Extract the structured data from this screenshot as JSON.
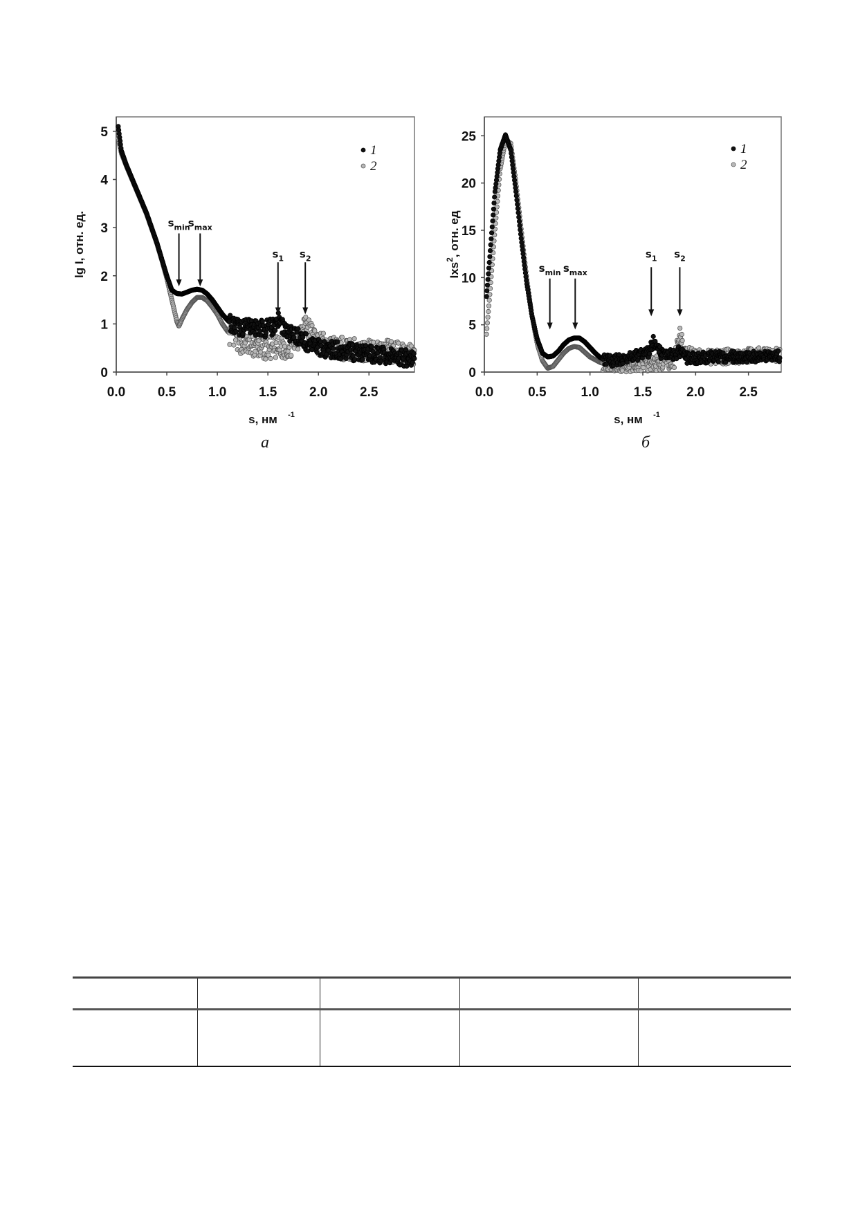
{
  "chart_data": [
    {
      "type": "scatter",
      "panel_label": "а",
      "xlabel": "s, нм",
      "xlabel_sup": "-1",
      "ylabel": "lg I, отн. ед.",
      "xlim": [
        0,
        2.95
      ],
      "ylim": [
        0,
        5.3
      ],
      "xticks": [
        "0.0",
        "0.5",
        "1.0",
        "1.5",
        "2.0",
        "2.5"
      ],
      "yticks": [
        "0",
        "1",
        "2",
        "3",
        "4",
        "5"
      ],
      "grid": false,
      "legend_position": "top-right",
      "series": [
        {
          "name": "1",
          "color": "#111111",
          "marker": "filled-circle",
          "x": [
            0.02,
            0.05,
            0.1,
            0.15,
            0.2,
            0.25,
            0.3,
            0.35,
            0.4,
            0.45,
            0.5,
            0.55,
            0.6,
            0.65,
            0.7,
            0.75,
            0.8,
            0.85,
            0.9,
            0.95,
            1.0,
            1.05,
            1.1,
            1.15,
            1.2,
            1.3,
            1.4,
            1.5,
            1.55,
            1.6,
            1.65,
            1.7,
            1.75,
            1.8,
            1.85,
            1.9,
            2.0,
            2.2,
            2.4,
            2.6,
            2.8,
            2.95
          ],
          "y": [
            5.1,
            4.6,
            4.3,
            4.05,
            3.8,
            3.55,
            3.3,
            3.0,
            2.7,
            2.35,
            2.0,
            1.7,
            1.63,
            1.62,
            1.66,
            1.7,
            1.72,
            1.7,
            1.62,
            1.5,
            1.35,
            1.2,
            1.08,
            0.98,
            0.93,
            0.92,
            0.93,
            0.9,
            0.95,
            1.1,
            0.95,
            0.8,
            0.78,
            0.75,
            0.65,
            0.6,
            0.5,
            0.45,
            0.4,
            0.35,
            0.3,
            0.3
          ]
        },
        {
          "name": "2",
          "color": "#b8b8b8",
          "marker": "open-grey-circle",
          "x": [
            0.02,
            0.05,
            0.1,
            0.15,
            0.2,
            0.25,
            0.3,
            0.35,
            0.4,
            0.45,
            0.5,
            0.55,
            0.6,
            0.62,
            0.65,
            0.7,
            0.75,
            0.8,
            0.85,
            0.9,
            0.95,
            1.0,
            1.05,
            1.1,
            1.2,
            1.3,
            1.4,
            1.5,
            1.6,
            1.7,
            1.8,
            1.85,
            1.9,
            2.0,
            2.2,
            2.4,
            2.6,
            2.8,
            2.95
          ],
          "y": [
            4.85,
            4.55,
            4.28,
            4.03,
            3.78,
            3.53,
            3.28,
            2.98,
            2.68,
            2.33,
            1.95,
            1.5,
            1.05,
            0.95,
            1.1,
            1.3,
            1.45,
            1.55,
            1.55,
            1.48,
            1.35,
            1.2,
            1.0,
            0.85,
            0.65,
            0.55,
            0.5,
            0.5,
            0.5,
            0.5,
            0.7,
            1.05,
            0.9,
            0.6,
            0.5,
            0.45,
            0.45,
            0.4,
            0.4
          ]
        }
      ],
      "annotations": [
        {
          "label": "s",
          "sub": "min",
          "x": 0.62
        },
        {
          "label": "s",
          "sub": "max",
          "x": 0.83
        },
        {
          "label": "s",
          "sub": "1",
          "x": 1.6
        },
        {
          "label": "s",
          "sub": "2",
          "x": 1.87
        }
      ]
    },
    {
      "type": "scatter",
      "panel_label": "б",
      "xlabel": "s, нм",
      "xlabel_sup": "-1",
      "ylabel": "Ixs",
      "ylabel_sup": "2",
      "ylabel_rest": ", отн. ед",
      "xlim": [
        0,
        2.81
      ],
      "ylim": [
        0,
        27
      ],
      "xticks": [
        "0.0",
        "0.5",
        "1.0",
        "1.5",
        "2.0",
        "2.5"
      ],
      "yticks": [
        "0",
        "5",
        "10",
        "15",
        "20",
        "25"
      ],
      "grid": false,
      "legend_position": "top-right",
      "series": [
        {
          "name": "1",
          "color": "#111111",
          "marker": "filled-circle",
          "x": [
            0.02,
            0.05,
            0.1,
            0.15,
            0.2,
            0.25,
            0.3,
            0.35,
            0.4,
            0.45,
            0.5,
            0.55,
            0.6,
            0.65,
            0.7,
            0.75,
            0.8,
            0.85,
            0.9,
            0.95,
            1.0,
            1.05,
            1.1,
            1.2,
            1.3,
            1.4,
            1.5,
            1.55,
            1.6,
            1.65,
            1.7,
            1.8,
            1.85,
            1.9,
            2.0,
            2.2,
            2.4,
            2.6,
            2.8
          ],
          "y": [
            8,
            12,
            19,
            23.5,
            25.1,
            23.5,
            19,
            14,
            9.5,
            6,
            3.5,
            2,
            1.6,
            1.7,
            2.2,
            2.9,
            3.4,
            3.6,
            3.6,
            3.2,
            2.6,
            2.0,
            1.5,
            1.2,
            1.4,
            1.6,
            1.9,
            2.0,
            3.2,
            2.2,
            1.8,
            1.8,
            2.2,
            1.5,
            1.5,
            1.6,
            1.6,
            1.6,
            1.7
          ]
        },
        {
          "name": "2",
          "color": "#b8b8b8",
          "marker": "open-grey-circle",
          "x": [
            0.02,
            0.05,
            0.1,
            0.15,
            0.2,
            0.25,
            0.3,
            0.35,
            0.4,
            0.45,
            0.5,
            0.55,
            0.6,
            0.65,
            0.7,
            0.75,
            0.8,
            0.85,
            0.9,
            0.95,
            1.0,
            1.1,
            1.2,
            1.4,
            1.6,
            1.8,
            1.85,
            1.9,
            2.0,
            2.2,
            2.4,
            2.6,
            2.8
          ],
          "y": [
            4,
            8,
            15,
            21.5,
            24.5,
            24.2,
            20,
            15,
            10,
            6,
            3,
            1.2,
            0.4,
            0.6,
            1.3,
            2,
            2.5,
            2.7,
            2.6,
            2.1,
            1.6,
            1.0,
            0.8,
            0.8,
            0.9,
            1.2,
            4.2,
            2.0,
            1.6,
            1.6,
            1.7,
            1.8,
            1.8
          ]
        }
      ],
      "annotations": [
        {
          "label": "s",
          "sub": "min",
          "x": 0.62
        },
        {
          "label": "s",
          "sub": "max",
          "x": 0.86
        },
        {
          "label": "s",
          "sub": "1",
          "x": 1.58
        },
        {
          "label": "s",
          "sub": "2",
          "x": 1.85
        }
      ]
    }
  ],
  "table": {
    "rows": 2,
    "cols": 5
  }
}
